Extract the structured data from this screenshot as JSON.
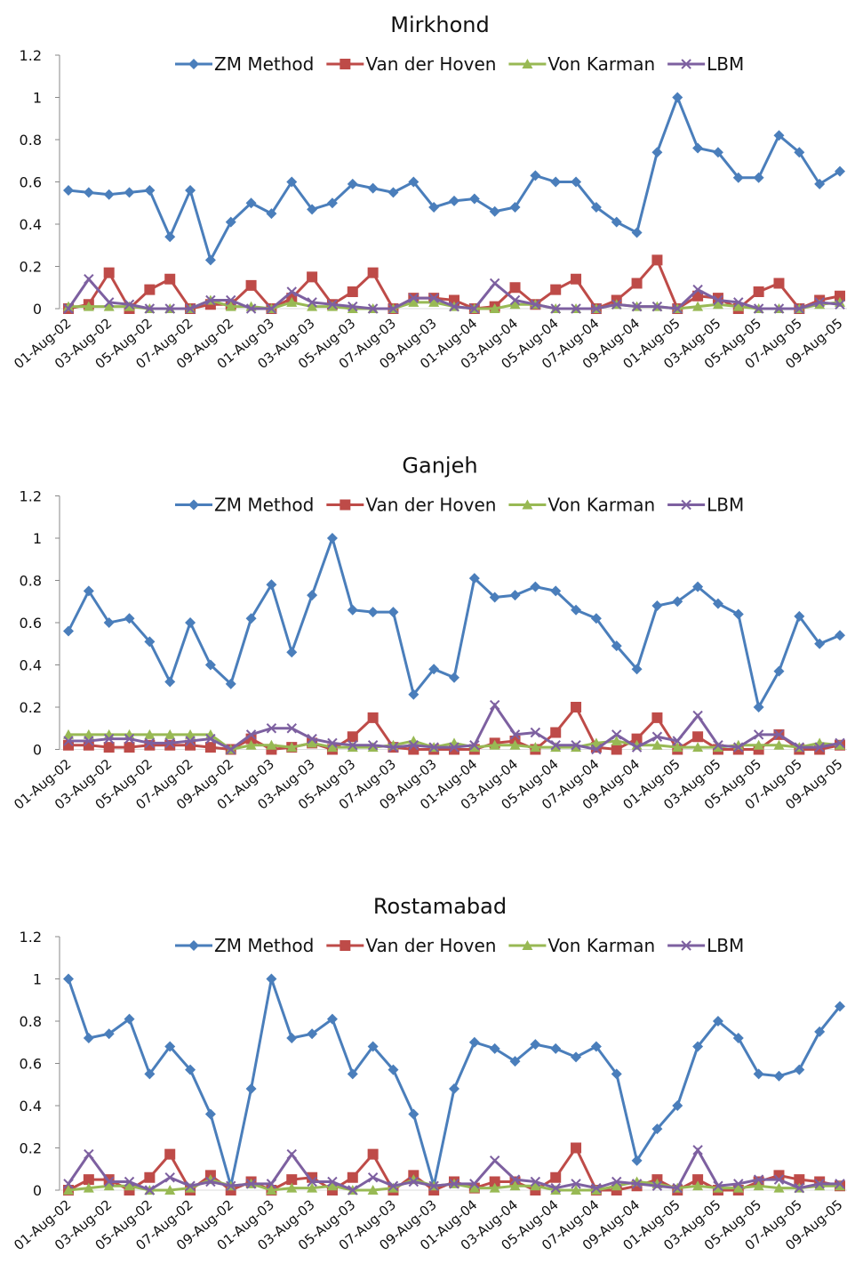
{
  "chart_data": [
    {
      "type": "line",
      "title": "Mirkhond",
      "categories": [
        "01-Aug-02",
        null,
        "03-Aug-02",
        null,
        "05-Aug-02",
        null,
        "07-Aug-02",
        null,
        "09-Aug-02",
        null,
        "01-Aug-03",
        null,
        "03-Aug-03",
        null,
        "05-Aug-03",
        null,
        "07-Aug-03",
        null,
        "09-Aug-03",
        null,
        "01-Aug-04",
        null,
        "03-Aug-04",
        null,
        "05-Aug-04",
        null,
        "07-Aug-04",
        null,
        "09-Aug-04",
        null,
        "01-Aug-05",
        null,
        "03-Aug-05",
        null,
        "05-Aug-05",
        null,
        "07-Aug-05",
        null,
        "09-Aug-05"
      ],
      "series": [
        {
          "name": "ZM Method",
          "color": "#4a7ebb",
          "marker": "diamond",
          "values": [
            0.56,
            0.55,
            0.54,
            0.55,
            0.56,
            0.34,
            0.56,
            0.23,
            0.41,
            0.5,
            0.45,
            0.6,
            0.47,
            0.5,
            0.59,
            0.57,
            0.55,
            0.6,
            0.48,
            0.51,
            0.52,
            0.46,
            0.48,
            0.63,
            0.6,
            0.6,
            0.48,
            0.41,
            0.36,
            0.74,
            1.0,
            0.76,
            0.74,
            0.62,
            0.62,
            0.82,
            0.74,
            0.59,
            0.65
          ]
        },
        {
          "name": "Van der Hoven",
          "color": "#be4b48",
          "marker": "square",
          "values": [
            0,
            0.02,
            0.17,
            0,
            0.09,
            0.14,
            0,
            0.02,
            0.02,
            0.11,
            0,
            0.05,
            0.15,
            0.02,
            0.08,
            0.17,
            0,
            0.05,
            0.05,
            0.04,
            0,
            0.01,
            0.1,
            0.02,
            0.09,
            0.14,
            0,
            0.04,
            0.12,
            0.23,
            0,
            0.06,
            0.05,
            0,
            0.08,
            0.12,
            0,
            0.04,
            0.06
          ]
        },
        {
          "name": "Von Karman",
          "color": "#98b954",
          "marker": "triangle",
          "values": [
            0.01,
            0.01,
            0.01,
            0.01,
            0,
            0,
            0,
            0.04,
            0.01,
            0.01,
            0,
            0.03,
            0.01,
            0.01,
            0,
            0,
            0,
            0.03,
            0.03,
            0.01,
            0,
            0,
            0.02,
            0.02,
            0,
            0,
            0,
            0.02,
            0.01,
            0.01,
            0,
            0.01,
            0.02,
            0.01,
            0,
            0,
            0,
            0.02,
            0.03
          ]
        },
        {
          "name": "LBM",
          "color": "#7d60a0",
          "marker": "x",
          "values": [
            0,
            0.14,
            0.03,
            0.02,
            0,
            0,
            0,
            0.04,
            0.04,
            0,
            0,
            0.08,
            0.03,
            0.02,
            0.01,
            0,
            0,
            0.05,
            0.05,
            0.01,
            0,
            0.12,
            0.04,
            0.02,
            0,
            0,
            0,
            0.02,
            0.01,
            0.01,
            0,
            0.09,
            0.04,
            0.03,
            0,
            0,
            0,
            0.03,
            0.02
          ]
        }
      ],
      "ylim": [
        0,
        1.2
      ],
      "yticks": [
        0,
        0.2,
        0.4,
        0.6,
        0.8,
        1,
        1.2
      ],
      "grid": false,
      "legend": "top"
    },
    {
      "type": "line",
      "title": "Ganjeh",
      "categories": [
        "01-Aug-02",
        null,
        "03-Aug-02",
        null,
        "05-Aug-02",
        null,
        "07-Aug-02",
        null,
        "09-Aug-02",
        null,
        "01-Aug-03",
        null,
        "03-Aug-03",
        null,
        "05-Aug-03",
        null,
        "07-Aug-03",
        null,
        "09-Aug-03",
        null,
        "01-Aug-04",
        null,
        "03-Aug-04",
        null,
        "05-Aug-04",
        null,
        "07-Aug-04",
        null,
        "09-Aug-04",
        null,
        "01-Aug-05",
        null,
        "03-Aug-05",
        null,
        "05-Aug-05",
        null,
        "07-Aug-05",
        null,
        "09-Aug-05"
      ],
      "series": [
        {
          "name": "ZM Method",
          "color": "#4a7ebb",
          "marker": "diamond",
          "values": [
            0.56,
            0.75,
            0.6,
            0.62,
            0.51,
            0.32,
            0.6,
            0.4,
            0.31,
            0.62,
            0.78,
            0.46,
            0.73,
            1.0,
            0.66,
            0.65,
            0.65,
            0.26,
            0.38,
            0.34,
            0.81,
            0.72,
            0.73,
            0.77,
            0.75,
            0.66,
            0.62,
            0.49,
            0.38,
            0.68,
            0.7,
            0.77,
            0.69,
            0.64,
            0.2,
            0.37,
            0.63,
            0.5,
            0.54
          ]
        },
        {
          "name": "Van der Hoven",
          "color": "#be4b48",
          "marker": "square",
          "values": [
            0.02,
            0.02,
            0.01,
            0.01,
            0.02,
            0.02,
            0.02,
            0.01,
            0,
            0.05,
            0,
            0.01,
            0.03,
            0,
            0.06,
            0.15,
            0.01,
            0,
            0,
            0,
            0,
            0.03,
            0.04,
            0,
            0.08,
            0.2,
            0.01,
            0,
            0.05,
            0.15,
            0,
            0.06,
            0,
            0,
            0,
            0.07,
            0,
            0,
            0.02
          ]
        },
        {
          "name": "Von Karman",
          "color": "#98b954",
          "marker": "triangle",
          "values": [
            0.07,
            0.07,
            0.07,
            0.07,
            0.07,
            0.07,
            0.07,
            0.07,
            0,
            0.02,
            0.02,
            0.01,
            0.03,
            0.01,
            0.01,
            0.01,
            0.02,
            0.04,
            0.01,
            0.03,
            0.01,
            0.02,
            0.02,
            0.01,
            0.01,
            0.01,
            0.03,
            0.04,
            0.02,
            0.02,
            0.01,
            0.01,
            0.01,
            0.02,
            0.02,
            0.02,
            0.01,
            0.03,
            0.02
          ]
        },
        {
          "name": "LBM",
          "color": "#7d60a0",
          "marker": "x",
          "values": [
            0.04,
            0.04,
            0.05,
            0.05,
            0.03,
            0.03,
            0.04,
            0.05,
            0,
            0.07,
            0.1,
            0.1,
            0.05,
            0.03,
            0.02,
            0.02,
            0.01,
            0.02,
            0.01,
            0.01,
            0.02,
            0.21,
            0.07,
            0.08,
            0.02,
            0.02,
            0,
            0.07,
            0.01,
            0.06,
            0.04,
            0.16,
            0.02,
            0.01,
            0.07,
            0.07,
            0.01,
            0.01,
            0.03
          ]
        }
      ],
      "ylim": [
        0,
        1.2
      ],
      "yticks": [
        0,
        0.2,
        0.4,
        0.6,
        0.8,
        1,
        1.2
      ],
      "grid": false,
      "legend": "top"
    },
    {
      "type": "line",
      "title": "Rostamabad",
      "categories": [
        "01-Aug-02",
        null,
        "03-Aug-02",
        null,
        "05-Aug-02",
        null,
        "07-Aug-02",
        null,
        "09-Aug-02",
        null,
        "01-Aug-03",
        null,
        "03-Aug-03",
        null,
        "05-Aug-03",
        null,
        "07-Aug-03",
        null,
        "09-Aug-03",
        null,
        "01-Aug-04",
        null,
        "03-Aug-04",
        null,
        "05-Aug-04",
        null,
        "07-Aug-04",
        null,
        "09-Aug-04",
        null,
        "01-Aug-05",
        null,
        "03-Aug-05",
        null,
        "05-Aug-05",
        null,
        "07-Aug-05",
        null,
        "09-Aug-05"
      ],
      "series": [
        {
          "name": "ZM Method",
          "color": "#4a7ebb",
          "marker": "diamond",
          "values": [
            1.0,
            0.72,
            0.74,
            0.81,
            0.55,
            0.68,
            0.57,
            0.36,
            0.02,
            0.48,
            1.0,
            0.72,
            0.74,
            0.81,
            0.55,
            0.68,
            0.57,
            0.36,
            0.02,
            0.48,
            0.7,
            0.67,
            0.61,
            0.69,
            0.67,
            0.63,
            0.68,
            0.55,
            0.14,
            0.29,
            0.4,
            0.68,
            0.8,
            0.72,
            0.55,
            0.54,
            0.57,
            0.75,
            0.87
          ]
        },
        {
          "name": "Van der Hoven",
          "color": "#be4b48",
          "marker": "square",
          "values": [
            0,
            0.05,
            0.05,
            0,
            0.06,
            0.17,
            0,
            0.07,
            0,
            0.04,
            0,
            0.05,
            0.06,
            0,
            0.06,
            0.17,
            0,
            0.07,
            0,
            0.04,
            0.01,
            0.04,
            0.04,
            0,
            0.06,
            0.2,
            0,
            0,
            0.02,
            0.05,
            0,
            0.05,
            0,
            0,
            0.04,
            0.07,
            0.05,
            0.04,
            0.02
          ]
        },
        {
          "name": "Von Karman",
          "color": "#98b954",
          "marker": "triangle",
          "values": [
            0,
            0.01,
            0.02,
            0.02,
            0,
            0,
            0.01,
            0.05,
            0.02,
            0.03,
            0,
            0.01,
            0.01,
            0.02,
            0,
            0,
            0.01,
            0.05,
            0.02,
            0.03,
            0.01,
            0.01,
            0.02,
            0.02,
            0,
            0,
            0,
            0.02,
            0.04,
            0.03,
            0.01,
            0.02,
            0.01,
            0.01,
            0.02,
            0.01,
            0.01,
            0.02,
            0.02
          ]
        },
        {
          "name": "LBM",
          "color": "#7d60a0",
          "marker": "x",
          "values": [
            0.03,
            0.17,
            0.04,
            0.04,
            0,
            0.06,
            0.02,
            0.04,
            0.02,
            0.03,
            0.03,
            0.17,
            0.04,
            0.04,
            0,
            0.06,
            0.02,
            0.04,
            0.02,
            0.03,
            0.03,
            0.14,
            0.05,
            0.04,
            0.01,
            0.03,
            0.01,
            0.04,
            0.03,
            0.02,
            0.01,
            0.19,
            0.02,
            0.03,
            0.05,
            0.05,
            0.01,
            0.03,
            0.03
          ]
        }
      ],
      "ylim": [
        0,
        1.2
      ],
      "yticks": [
        0,
        0.2,
        0.4,
        0.6,
        0.8,
        1,
        1.2
      ],
      "grid": false,
      "legend": "top"
    }
  ]
}
